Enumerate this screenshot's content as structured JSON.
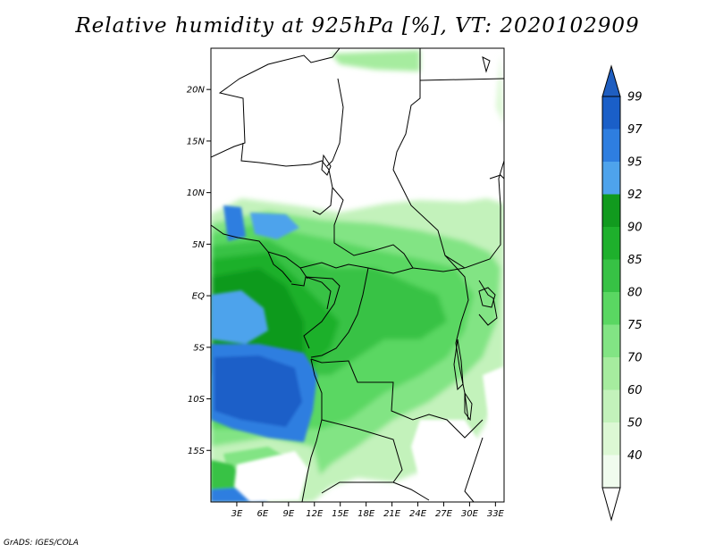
{
  "title": "Relative humidity at 925hPa [%], VT: 2020102909",
  "credit": "GrADS: IGES/COLA",
  "map": {
    "lon_range": [
      0,
      34
    ],
    "lat_range": [
      -20,
      24
    ],
    "lat_ticks": [
      {
        "value": 20,
        "label": "20N"
      },
      {
        "value": 15,
        "label": "15N"
      },
      {
        "value": 10,
        "label": "10N"
      },
      {
        "value": 5,
        "label": "5N"
      },
      {
        "value": 0,
        "label": "EQ"
      },
      {
        "value": -5,
        "label": "5S"
      },
      {
        "value": -10,
        "label": "10S"
      },
      {
        "value": -15,
        "label": "15S"
      }
    ],
    "lon_ticks": [
      {
        "value": 3,
        "label": "3E"
      },
      {
        "value": 6,
        "label": "6E"
      },
      {
        "value": 9,
        "label": "9E"
      },
      {
        "value": 12,
        "label": "12E"
      },
      {
        "value": 15,
        "label": "15E"
      },
      {
        "value": 18,
        "label": "18E"
      },
      {
        "value": 21,
        "label": "21E"
      },
      {
        "value": 24,
        "label": "24E"
      },
      {
        "value": 27,
        "label": "27E"
      },
      {
        "value": 30,
        "label": "30E"
      },
      {
        "value": 33,
        "label": "33E"
      }
    ]
  },
  "colorbar": {
    "levels": [
      "99",
      "97",
      "95",
      "92",
      "90",
      "85",
      "80",
      "75",
      "70",
      "60",
      "50",
      "40"
    ],
    "colors": [
      "#1a5fc8",
      "#2e7ee0",
      "#4ea3ec",
      "#119a1e",
      "#1eb02c",
      "#37c245",
      "#5ad762",
      "#82e484",
      "#a6ec9f",
      "#c3f2bb",
      "#dcf8d4",
      "#f0fcee"
    ],
    "top_color": "#1f5ec0",
    "bottom_color": "#ffffff"
  }
}
